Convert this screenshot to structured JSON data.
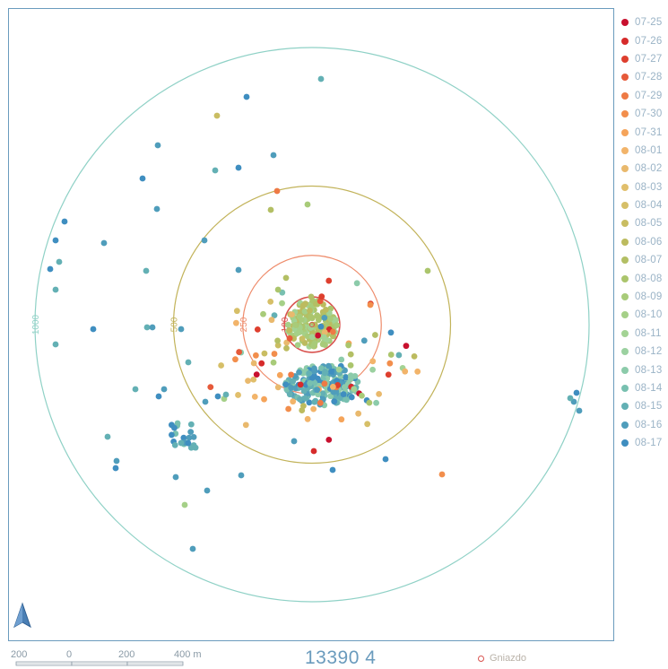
{
  "map": {
    "title": "13390 4",
    "ring_labels": [
      {
        "radius_m": 100,
        "text": "100",
        "color": "#d9534f"
      },
      {
        "radius_m": 250,
        "text": "250",
        "color": "#ee8b6a"
      },
      {
        "radius_m": 500,
        "text": "500",
        "color": "#c2b35a"
      },
      {
        "radius_m": 1000,
        "text": "1000",
        "color": "#8fd1c6"
      }
    ],
    "nest_legend_label": "Gniazdo",
    "north_arrow": "north-arrow-icon",
    "scale_labels": [
      "200",
      "0",
      "200",
      "400 m"
    ]
  },
  "legend": [
    {
      "label": "07-25",
      "color": "#c8102e"
    },
    {
      "label": "07-26",
      "color": "#d62b2b"
    },
    {
      "label": "07-27",
      "color": "#de3f2e"
    },
    {
      "label": "07-28",
      "color": "#e65a3a"
    },
    {
      "label": "07-29",
      "color": "#ee7a45"
    },
    {
      "label": "07-30",
      "color": "#f28e4c"
    },
    {
      "label": "07-31",
      "color": "#f5a45a"
    },
    {
      "label": "08-01",
      "color": "#f2b46a"
    },
    {
      "label": "08-02",
      "color": "#e9b96d"
    },
    {
      "label": "08-03",
      "color": "#e1bf6c"
    },
    {
      "label": "08-04",
      "color": "#d6bf68"
    },
    {
      "label": "08-05",
      "color": "#c9bd62"
    },
    {
      "label": "08-06",
      "color": "#bcbb5f"
    },
    {
      "label": "08-07",
      "color": "#b3bf64"
    },
    {
      "label": "08-08",
      "color": "#abc56c"
    },
    {
      "label": "08-09",
      "color": "#a8cb79"
    },
    {
      "label": "08-10",
      "color": "#a5d088"
    },
    {
      "label": "08-11",
      "color": "#a3d394"
    },
    {
      "label": "08-12",
      "color": "#9bd1a0"
    },
    {
      "label": "08-13",
      "color": "#8ccbaa"
    },
    {
      "label": "08-14",
      "color": "#78c0b0"
    },
    {
      "label": "08-15",
      "color": "#63b0b4"
    },
    {
      "label": "08-16",
      "color": "#4f9dbb"
    },
    {
      "label": "08-17",
      "color": "#3f8ec0"
    }
  ]
}
